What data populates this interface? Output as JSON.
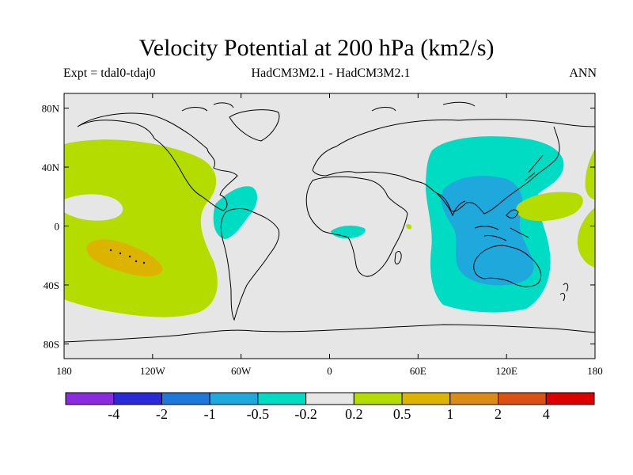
{
  "header": {
    "title": "Velocity Potential at 200 hPa (km2/s)",
    "left": "Expt = tdal0-tdaj0",
    "center": "HadCM3M2.1 - HadCM3M2.1",
    "right": "ANN"
  },
  "map": {
    "projection": "cylindrical equidistant",
    "xlim": [
      -180,
      180
    ],
    "ylim": [
      -90,
      90
    ],
    "lat_ticks": [
      {
        "value": 80,
        "label": "80N"
      },
      {
        "value": 40,
        "label": "40N"
      },
      {
        "value": 0,
        "label": "0"
      },
      {
        "value": -40,
        "label": "40S"
      },
      {
        "value": -80,
        "label": "80S"
      }
    ],
    "lon_ticks": [
      {
        "value": -180,
        "label": "180"
      },
      {
        "value": -120,
        "label": "120W"
      },
      {
        "value": -60,
        "label": "60W"
      },
      {
        "value": 0,
        "label": "0"
      },
      {
        "value": 60,
        "label": "60E"
      },
      {
        "value": 120,
        "label": "120E"
      },
      {
        "value": 180,
        "label": "180"
      }
    ],
    "background_color": "#e6e6e6",
    "coastline_color": "#000000"
  },
  "colorbar": {
    "colors": [
      "#8a2be2",
      "#2a2ad8",
      "#1e78dc",
      "#1ea8dc",
      "#00dcc4",
      "#e6e6e6",
      "#b4dc00",
      "#dcb400",
      "#dc8c14",
      "#dc5014",
      "#dc0000"
    ],
    "labels": [
      "-4",
      "-2",
      "-1",
      "-0.5",
      "-0.2",
      "0.2",
      "0.5",
      "1",
      "2",
      "4"
    ]
  }
}
